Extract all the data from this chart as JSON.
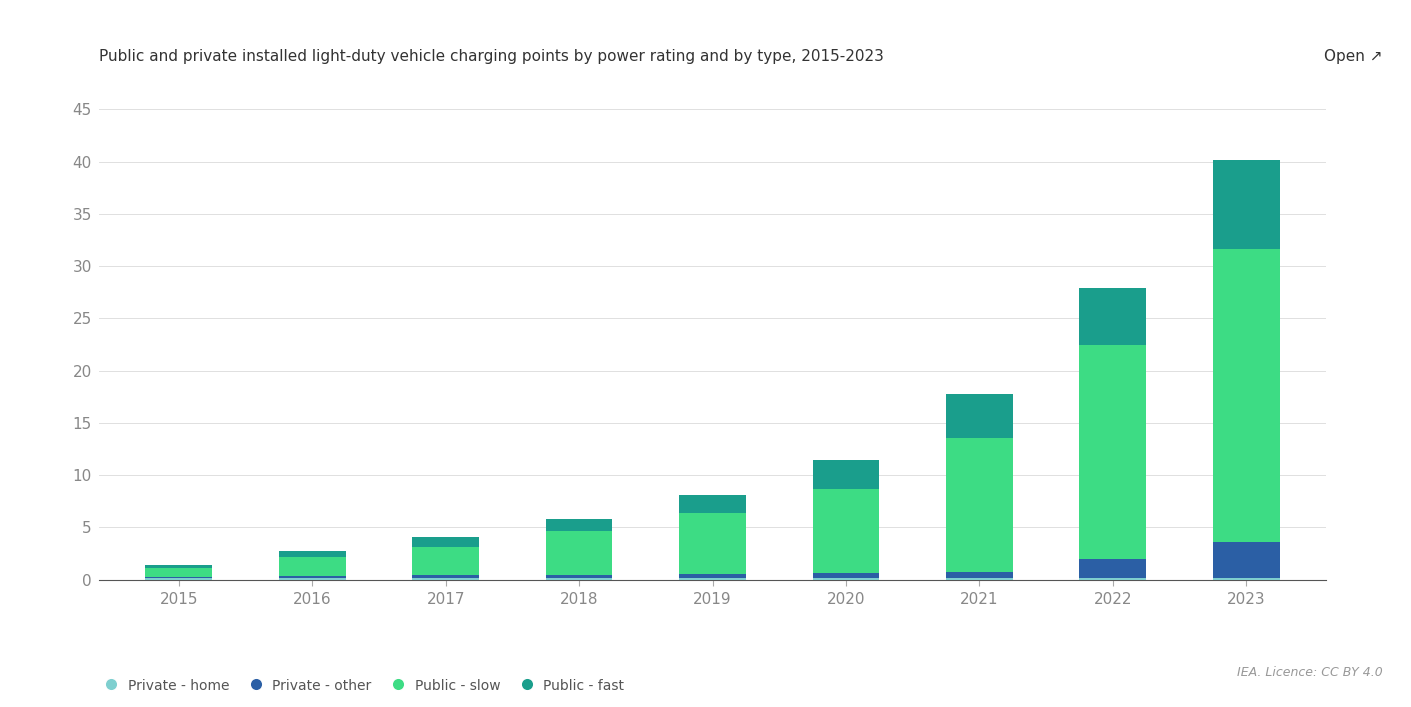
{
  "title": "Public and private installed light-duty vehicle charging points by power rating and by type, 2015-2023",
  "open_label": "Open",
  "years": [
    2015,
    2016,
    2017,
    2018,
    2019,
    2020,
    2021,
    2022,
    2023
  ],
  "private_home": [
    0.15,
    0.15,
    0.15,
    0.15,
    0.15,
    0.15,
    0.15,
    0.15,
    0.15
  ],
  "private_other": [
    0.1,
    0.2,
    0.3,
    0.3,
    0.4,
    0.5,
    0.6,
    1.8,
    3.5
  ],
  "public_slow": [
    0.9,
    1.8,
    2.7,
    4.2,
    5.8,
    8.0,
    12.8,
    20.5,
    28.0
  ],
  "public_fast": [
    0.3,
    0.6,
    0.9,
    1.2,
    1.8,
    2.8,
    4.2,
    5.5,
    8.5
  ],
  "colors": {
    "private_home": "#7ecfcf",
    "private_other": "#2b5fa5",
    "public_slow": "#3ddc84",
    "public_fast": "#1a9e8c"
  },
  "legend_labels": [
    "Private - home",
    "Private - other",
    "Public - slow",
    "Public - fast"
  ],
  "ylabel_ticks": [
    0,
    5,
    10,
    15,
    20,
    25,
    30,
    35,
    40,
    45
  ],
  "ylim": [
    0,
    46
  ],
  "background_color": "#ffffff",
  "footer": "IEA. Licence: CC BY 4.0",
  "tick_color": "#aaaaaa",
  "label_color": "#888888",
  "title_color": "#333333",
  "grid_color": "#e0e0e0"
}
